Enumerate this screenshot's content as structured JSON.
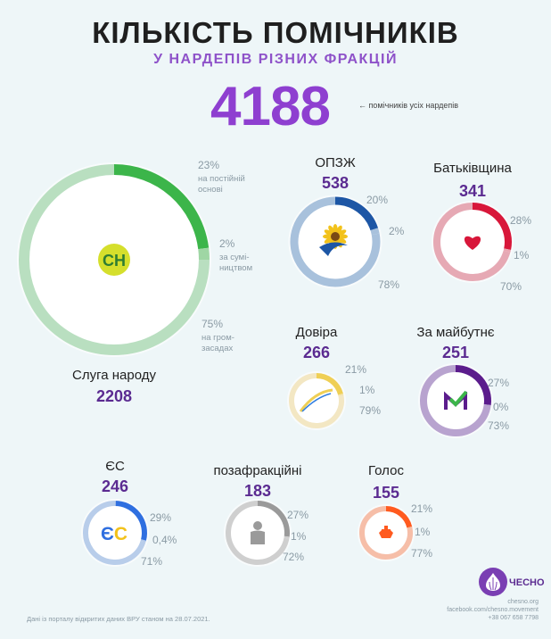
{
  "header": {
    "title": "КІЛЬКІСТЬ ПОМІЧНИКІВ",
    "subtitle": "У НАРДЕПІВ РІЗНИХ ФРАКЦІЙ",
    "total": "4188",
    "total_note": "← помічників усіх нардепів"
  },
  "colors": {
    "background": "#eef6f8",
    "accent": "#8e3fd0",
    "count_text": "#5b2b91"
  },
  "chart_data": {
    "type": "pie",
    "title": "КІЛЬКІСТЬ ПОМІЧНИКІВ",
    "subtitle": "У НАРДЕПІВ РІЗНИХ ФРАКЦІЙ",
    "total": 4188,
    "factions": [
      {
        "name": "Слуга народу",
        "total": 2208,
        "percents": [
          "23%",
          "2%",
          "75%"
        ],
        "values": [
          23,
          2,
          75
        ],
        "descriptions": [
          "на постійній основі",
          "за сумісництвом",
          "на громадських засадах"
        ],
        "description_lines": [
          [
            "на постійній",
            "основі"
          ],
          [
            "за сумі-",
            "ництвом"
          ],
          [
            "на гром-",
            "засадах"
          ]
        ],
        "colors": [
          "#3cb54a",
          "#9fd6a4",
          "#b9dfc0"
        ],
        "logo": "СН",
        "logo_color": "#d5df2c",
        "icon": "sluha-narodu-logo"
      },
      {
        "name": "ОПЗЖ",
        "total": 538,
        "percents": [
          "20%",
          "2%",
          "78%"
        ],
        "values": [
          20,
          2,
          78
        ],
        "colors": [
          "#1d56a5",
          "#a8c1dc",
          "#a8c1dc"
        ],
        "icon": "opzzh-sunflower-logo"
      },
      {
        "name": "Батьківщина",
        "total": 341,
        "percents": [
          "28%",
          "1%",
          "70%"
        ],
        "values": [
          28,
          1,
          70
        ],
        "colors": [
          "#d8173a",
          "#eaa6b1",
          "#e6a9b4"
        ],
        "icon": "heart-logo"
      },
      {
        "name": "Довіра",
        "total": 266,
        "percents": [
          "21%",
          "1%",
          "79%"
        ],
        "values": [
          21,
          1,
          79
        ],
        "colors": [
          "#efcf55",
          "#f4e3a8",
          "#f3e7c3"
        ],
        "icon": "dovira-swoosh-logo"
      },
      {
        "name": "За майбутнє",
        "total": 251,
        "percents": [
          "27%",
          "0%",
          "73%"
        ],
        "values": [
          27,
          0,
          73
        ],
        "colors": [
          "#5b1c8c",
          "#b79ed1",
          "#b8a3cf"
        ],
        "icon": "za-maibutnie-check-logo"
      },
      {
        "name": "ЄС",
        "total": 246,
        "percents": [
          "29%",
          "0,4%",
          "71%"
        ],
        "values": [
          29,
          0.4,
          71
        ],
        "colors": [
          "#2f6fe0",
          "#aec6ea",
          "#b8cdea"
        ],
        "logo": "ЄС",
        "icon": "yes-logo"
      },
      {
        "name": "позафракційні",
        "total": 183,
        "percents": [
          "27%",
          "1%",
          "72%"
        ],
        "values": [
          27,
          1,
          72
        ],
        "colors": [
          "#9a9a9a",
          "#cfcfcf",
          "#cfcfcf"
        ],
        "icon": "person-icon"
      },
      {
        "name": "Голос",
        "total": 155,
        "percents": [
          "21%",
          "1%",
          "77%"
        ],
        "values": [
          21,
          1,
          77
        ],
        "colors": [
          "#ff5a1f",
          "#f6b79b",
          "#f6bea8"
        ],
        "icon": "holos-logo"
      }
    ]
  },
  "footer": {
    "source": "Дані із порталу відкритих даних ВРУ станом на 28.07.2021.",
    "brand": "ЧЕСНО",
    "contacts": [
      "chesno.org",
      "facebook.com/chesno.movement",
      "+38 067 658 7798"
    ]
  }
}
